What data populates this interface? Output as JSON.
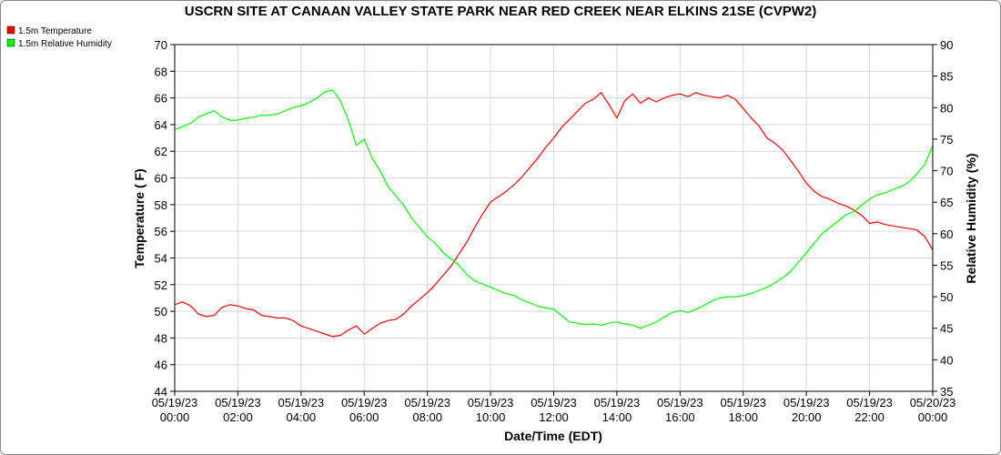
{
  "chart_data": {
    "type": "line",
    "title": "USCRN SITE AT CANAAN VALLEY STATE PARK NEAR RED CREEK NEAR ELKINS 21SE (CVPW2)",
    "xlabel": "Date/Time (EDT)",
    "ylabel_left": "Temperature ( F)",
    "ylabel_right": "Relative Humidity (%)",
    "ylim_left": [
      44,
      70
    ],
    "ylim_right": [
      35,
      90
    ],
    "yticks_left": [
      44,
      46,
      48,
      50,
      52,
      54,
      56,
      58,
      60,
      62,
      64,
      66,
      68,
      70
    ],
    "yticks_right": [
      35,
      40,
      45,
      50,
      55,
      60,
      65,
      70,
      75,
      80,
      85,
      90
    ],
    "xlim_hours": [
      0,
      24
    ],
    "x_ticks": [
      {
        "date": "05/19/23",
        "time": "00:00"
      },
      {
        "date": "05/19/23",
        "time": "02:00"
      },
      {
        "date": "05/19/23",
        "time": "04:00"
      },
      {
        "date": "05/19/23",
        "time": "06:00"
      },
      {
        "date": "05/19/23",
        "time": "08:00"
      },
      {
        "date": "05/19/23",
        "time": "10:00"
      },
      {
        "date": "05/19/23",
        "time": "12:00"
      },
      {
        "date": "05/19/23",
        "time": "14:00"
      },
      {
        "date": "05/19/23",
        "time": "16:00"
      },
      {
        "date": "05/19/23",
        "time": "18:00"
      },
      {
        "date": "05/19/23",
        "time": "20:00"
      },
      {
        "date": "05/19/23",
        "time": "22:00"
      },
      {
        "date": "05/20/23",
        "time": "00:00"
      }
    ],
    "grid": true,
    "legend_position": "top-left",
    "series": [
      {
        "name": "1.5m Temperature",
        "color": "#ff0000",
        "axis": "left",
        "points": [
          [
            0.0,
            50.5
          ],
          [
            0.25,
            50.7
          ],
          [
            0.5,
            50.4
          ],
          [
            0.75,
            49.8
          ],
          [
            1.0,
            49.6
          ],
          [
            1.25,
            49.7
          ],
          [
            1.5,
            50.3
          ],
          [
            1.75,
            50.5
          ],
          [
            2.0,
            50.4
          ],
          [
            2.25,
            50.2
          ],
          [
            2.5,
            50.1
          ],
          [
            2.75,
            49.7
          ],
          [
            3.0,
            49.6
          ],
          [
            3.25,
            49.5
          ],
          [
            3.5,
            49.5
          ],
          [
            3.75,
            49.3
          ],
          [
            4.0,
            48.9
          ],
          [
            4.25,
            48.7
          ],
          [
            4.5,
            48.5
          ],
          [
            4.75,
            48.3
          ],
          [
            5.0,
            48.1
          ],
          [
            5.25,
            48.2
          ],
          [
            5.5,
            48.6
          ],
          [
            5.75,
            48.9
          ],
          [
            6.0,
            48.3
          ],
          [
            6.25,
            48.7
          ],
          [
            6.5,
            49.1
          ],
          [
            6.75,
            49.3
          ],
          [
            7.0,
            49.4
          ],
          [
            7.25,
            49.8
          ],
          [
            7.5,
            50.4
          ],
          [
            7.75,
            50.9
          ],
          [
            8.0,
            51.4
          ],
          [
            8.25,
            52.0
          ],
          [
            8.5,
            52.7
          ],
          [
            8.75,
            53.4
          ],
          [
            9.0,
            54.3
          ],
          [
            9.25,
            55.2
          ],
          [
            9.5,
            56.3
          ],
          [
            9.75,
            57.3
          ],
          [
            10.0,
            58.2
          ],
          [
            10.25,
            58.6
          ],
          [
            10.5,
            59.0
          ],
          [
            10.75,
            59.5
          ],
          [
            11.0,
            60.1
          ],
          [
            11.25,
            60.8
          ],
          [
            11.5,
            61.5
          ],
          [
            11.75,
            62.3
          ],
          [
            12.0,
            63.0
          ],
          [
            12.25,
            63.8
          ],
          [
            12.5,
            64.4
          ],
          [
            12.75,
            65.0
          ],
          [
            13.0,
            65.6
          ],
          [
            13.25,
            65.9
          ],
          [
            13.5,
            66.4
          ],
          [
            13.75,
            65.5
          ],
          [
            14.0,
            64.5
          ],
          [
            14.25,
            65.8
          ],
          [
            14.5,
            66.3
          ],
          [
            14.75,
            65.6
          ],
          [
            15.0,
            66.0
          ],
          [
            15.25,
            65.7
          ],
          [
            15.5,
            66.0
          ],
          [
            15.75,
            66.2
          ],
          [
            16.0,
            66.3
          ],
          [
            16.25,
            66.1
          ],
          [
            16.5,
            66.4
          ],
          [
            16.75,
            66.2
          ],
          [
            17.0,
            66.1
          ],
          [
            17.25,
            66.0
          ],
          [
            17.5,
            66.2
          ],
          [
            17.75,
            65.9
          ],
          [
            18.0,
            65.2
          ],
          [
            18.25,
            64.5
          ],
          [
            18.5,
            63.9
          ],
          [
            18.75,
            63.0
          ],
          [
            19.0,
            62.6
          ],
          [
            19.25,
            62.1
          ],
          [
            19.5,
            61.3
          ],
          [
            19.75,
            60.5
          ],
          [
            20.0,
            59.6
          ],
          [
            20.25,
            59.0
          ],
          [
            20.5,
            58.6
          ],
          [
            20.75,
            58.4
          ],
          [
            21.0,
            58.1
          ],
          [
            21.25,
            57.9
          ],
          [
            21.5,
            57.6
          ],
          [
            21.75,
            57.2
          ],
          [
            22.0,
            56.6
          ],
          [
            22.25,
            56.7
          ],
          [
            22.5,
            56.5
          ],
          [
            22.75,
            56.4
          ],
          [
            23.0,
            56.3
          ],
          [
            23.25,
            56.2
          ],
          [
            23.5,
            56.1
          ],
          [
            23.75,
            55.6
          ],
          [
            24.0,
            54.6
          ]
        ]
      },
      {
        "name": "1.5m Relative Humidity",
        "color": "#00ff00",
        "axis": "right",
        "points": [
          [
            0.0,
            76.5
          ],
          [
            0.25,
            77.0
          ],
          [
            0.5,
            77.5
          ],
          [
            0.75,
            78.5
          ],
          [
            1.0,
            79.0
          ],
          [
            1.25,
            79.5
          ],
          [
            1.5,
            78.5
          ],
          [
            1.75,
            78.0
          ],
          [
            2.0,
            78.0
          ],
          [
            2.25,
            78.3
          ],
          [
            2.5,
            78.5
          ],
          [
            2.75,
            78.8
          ],
          [
            3.0,
            78.8
          ],
          [
            3.25,
            79.0
          ],
          [
            3.5,
            79.5
          ],
          [
            3.75,
            80.0
          ],
          [
            4.0,
            80.3
          ],
          [
            4.25,
            80.8
          ],
          [
            4.5,
            81.5
          ],
          [
            4.75,
            82.5
          ],
          [
            5.0,
            82.8
          ],
          [
            5.25,
            81.0
          ],
          [
            5.5,
            78.0
          ],
          [
            5.75,
            74.0
          ],
          [
            6.0,
            75.0
          ],
          [
            6.25,
            72.0
          ],
          [
            6.5,
            70.0
          ],
          [
            6.75,
            67.5
          ],
          [
            7.0,
            66.0
          ],
          [
            7.25,
            64.5
          ],
          [
            7.5,
            62.5
          ],
          [
            7.75,
            61.0
          ],
          [
            8.0,
            59.5
          ],
          [
            8.25,
            58.5
          ],
          [
            8.5,
            57.0
          ],
          [
            8.75,
            56.0
          ],
          [
            9.0,
            55.0
          ],
          [
            9.25,
            53.5
          ],
          [
            9.5,
            52.5
          ],
          [
            9.75,
            52.0
          ],
          [
            10.0,
            51.5
          ],
          [
            10.25,
            51.0
          ],
          [
            10.5,
            50.5
          ],
          [
            10.75,
            50.2
          ],
          [
            11.0,
            49.5
          ],
          [
            11.25,
            49.0
          ],
          [
            11.5,
            48.5
          ],
          [
            11.75,
            48.2
          ],
          [
            12.0,
            48.0
          ],
          [
            12.25,
            47.0
          ],
          [
            12.5,
            46.0
          ],
          [
            12.75,
            45.8
          ],
          [
            13.0,
            45.6
          ],
          [
            13.25,
            45.7
          ],
          [
            13.5,
            45.5
          ],
          [
            13.75,
            45.8
          ],
          [
            14.0,
            46.0
          ],
          [
            14.25,
            45.7
          ],
          [
            14.5,
            45.5
          ],
          [
            14.75,
            45.0
          ],
          [
            15.0,
            45.5
          ],
          [
            15.25,
            46.0
          ],
          [
            15.5,
            46.8
          ],
          [
            15.75,
            47.5
          ],
          [
            16.0,
            47.8
          ],
          [
            16.25,
            47.5
          ],
          [
            16.5,
            48.0
          ],
          [
            16.75,
            48.6
          ],
          [
            17.0,
            49.3
          ],
          [
            17.25,
            49.8
          ],
          [
            17.5,
            50.0
          ],
          [
            17.75,
            50.0
          ],
          [
            18.0,
            50.2
          ],
          [
            18.25,
            50.5
          ],
          [
            18.5,
            51.0
          ],
          [
            18.75,
            51.5
          ],
          [
            19.0,
            52.2
          ],
          [
            19.25,
            53.0
          ],
          [
            19.5,
            54.0
          ],
          [
            19.75,
            55.5
          ],
          [
            20.0,
            57.0
          ],
          [
            20.25,
            58.5
          ],
          [
            20.5,
            60.0
          ],
          [
            20.75,
            61.0
          ],
          [
            21.0,
            62.0
          ],
          [
            21.25,
            63.0
          ],
          [
            21.5,
            63.5
          ],
          [
            21.75,
            64.5
          ],
          [
            22.0,
            65.5
          ],
          [
            22.25,
            66.2
          ],
          [
            22.5,
            66.5
          ],
          [
            22.75,
            67.0
          ],
          [
            23.0,
            67.5
          ],
          [
            23.25,
            68.2
          ],
          [
            23.5,
            69.5
          ],
          [
            23.75,
            71.0
          ],
          [
            24.0,
            74.0
          ]
        ]
      }
    ]
  }
}
